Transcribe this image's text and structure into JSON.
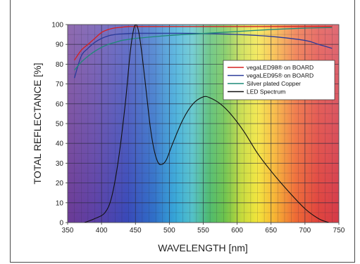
{
  "chart_data": {
    "type": "line",
    "title": "",
    "xlabel": "WAVELENGTH [nm]",
    "ylabel": "TOTAL REFLECTANCE [%]",
    "xlim": [
      350,
      750
    ],
    "ylim": [
      0,
      100
    ],
    "x_ticks": [
      350,
      400,
      450,
      500,
      550,
      600,
      650,
      700,
      750
    ],
    "y_ticks": [
      0,
      10,
      20,
      30,
      40,
      50,
      60,
      70,
      80,
      90,
      100
    ],
    "grid": true,
    "background": "visible spectrum gradient",
    "legend_position": "top-right",
    "series": [
      {
        "name": "vegaLED98® on BOARD",
        "color": "#d62020",
        "x": [
          360,
          370,
          380,
          390,
          400,
          410,
          420,
          430,
          440,
          450,
          500,
          550,
          600,
          650,
          700,
          740
        ],
        "y": [
          82,
          87,
          90,
          93,
          96,
          97.5,
          98.3,
          98.7,
          99,
          99,
          99,
          99,
          99,
          99,
          99,
          99
        ]
      },
      {
        "name": "vegaLED95® on BOARD",
        "color": "#2a3a9a",
        "x": [
          360,
          370,
          380,
          390,
          400,
          410,
          420,
          430,
          440,
          450,
          500,
          550,
          600,
          650,
          700,
          720,
          740
        ],
        "y": [
          73,
          84,
          88,
          91,
          93,
          94.3,
          95,
          95.3,
          95.5,
          95.6,
          95.6,
          95.5,
          95,
          94,
          92,
          90,
          88
        ]
      },
      {
        "name": "Silver plated Copper",
        "color": "#1f8a78",
        "x": [
          360,
          370,
          380,
          390,
          400,
          410,
          420,
          430,
          440,
          450,
          500,
          550,
          600,
          650,
          700,
          740
        ],
        "y": [
          77,
          81,
          84,
          86.5,
          88.5,
          90,
          91,
          92,
          92.5,
          93,
          94.5,
          95.5,
          96.5,
          97.5,
          98.2,
          98.5
        ]
      },
      {
        "name": "LED Spectrum",
        "color": "#111111",
        "x": [
          375,
          390,
          405,
          415,
          425,
          435,
          442,
          447,
          451,
          455,
          460,
          466,
          472,
          478,
          484,
          490,
          496,
          505,
          520,
          535,
          550,
          560,
          575,
          590,
          610,
          630,
          650,
          675,
          700,
          720,
          735
        ],
        "y": [
          0,
          2,
          5,
          13,
          32,
          60,
          85,
          97,
          100,
          96,
          84,
          66,
          48,
          36,
          30,
          29.5,
          32,
          40,
          52,
          60,
          63.5,
          63,
          60,
          55,
          46,
          35,
          26,
          16,
          7,
          2,
          0
        ]
      }
    ]
  }
}
